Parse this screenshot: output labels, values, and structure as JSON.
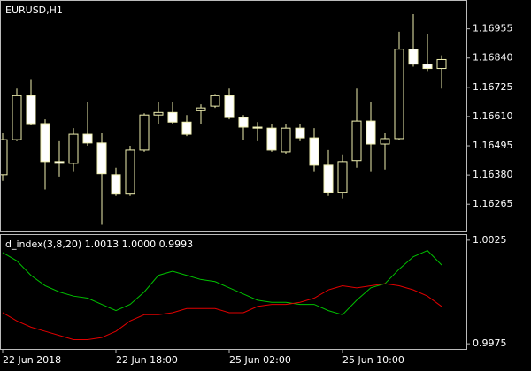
{
  "chart_data": [
    {
      "type": "candlestick",
      "title": "EURUSD,H1",
      "categories": [
        "22 Jun 2018",
        null,
        null,
        null,
        null,
        null,
        null,
        null,
        "22 Jun 18:00",
        null,
        null,
        null,
        null,
        null,
        null,
        null,
        "25 Jun 02:00",
        null,
        null,
        null,
        null,
        null,
        null,
        null,
        "25 Jun 10:00",
        null,
        null,
        null,
        null,
        null,
        null,
        null
      ],
      "open": [
        1.16381,
        1.16519,
        1.16692,
        1.16582,
        1.16433,
        1.16426,
        1.1654,
        1.16506,
        1.16381,
        1.16305,
        1.16478,
        1.16616,
        1.16626,
        1.16588,
        1.16633,
        1.16651,
        1.16692,
        1.16606,
        1.16568,
        1.16564,
        1.16471,
        1.16564,
        1.16526,
        1.16419,
        1.16312,
        1.16437,
        1.16592,
        1.16502,
        1.16523,
        1.16875,
        1.16816,
        1.16799
      ],
      "high": [
        1.16547,
        1.1672,
        1.16754,
        1.16599,
        1.16513,
        1.16564,
        1.16668,
        1.16547,
        1.16409,
        1.16495,
        1.16623,
        1.16668,
        1.16668,
        1.16616,
        1.16658,
        1.16699,
        1.1672,
        1.16616,
        1.16588,
        1.16582,
        1.16582,
        1.16582,
        1.16564,
        1.16478,
        1.16461,
        1.1672,
        1.16668,
        1.16547,
        1.16944,
        1.17013,
        1.16934,
        1.16851
      ],
      "low": [
        1.16357,
        1.16513,
        1.16575,
        1.16323,
        1.16374,
        1.16392,
        1.16495,
        1.16184,
        1.16298,
        1.16298,
        1.16471,
        1.16582,
        1.16582,
        1.16533,
        1.16582,
        1.16644,
        1.16599,
        1.16519,
        1.16513,
        1.16471,
        1.16464,
        1.16513,
        1.16392,
        1.16298,
        1.16288,
        1.16409,
        1.16392,
        1.16402,
        1.16519,
        1.16806,
        1.16789,
        1.1672
      ],
      "close": [
        1.16519,
        1.16692,
        1.16582,
        1.16433,
        1.16426,
        1.1654,
        1.16506,
        1.16385,
        1.16305,
        1.16478,
        1.16616,
        1.16626,
        1.16588,
        1.1654,
        1.16644,
        1.16692,
        1.16606,
        1.16568,
        1.16564,
        1.16478,
        1.16564,
        1.16526,
        1.16419,
        1.16312,
        1.16433,
        1.16592,
        1.16502,
        1.16523,
        1.16875,
        1.16816,
        1.16799,
        1.16834
      ],
      "up_color": "#000000",
      "down_color": "#ffffff",
      "wick_color": "#f0f0b0",
      "ylim": [
        1.16158,
        1.17065
      ],
      "yticks": [
        1.16955,
        {
          "value": 1.1684,
          "label": "1.16840"
        },
        1.16725,
        {
          "value": 1.1661,
          "label": "1.16610"
        },
        1.16495,
        {
          "value": 1.1638,
          "label": "1.16380"
        },
        1.16265
      ]
    },
    {
      "type": "line",
      "title": "d_index(3,8,20) 1.0013 1.0000 0.9993",
      "series": [
        {
          "color": "#00c000",
          "values": [
            1.0019,
            1.0015,
            1.0008,
            1.0003,
            1.0,
            0.9998,
            0.9997,
            0.9994,
            0.9991,
            0.9994,
            1.0,
            1.0008,
            1.001,
            1.0008,
            1.0006,
            1.0005,
            1.0002,
            0.9999,
            0.9996,
            0.9995,
            0.9995,
            0.9994,
            0.9994,
            0.9991,
            0.9989,
            0.9996,
            1.0002,
            1.0004,
            1.0011,
            1.0017,
            1.002,
            1.0013
          ]
        },
        {
          "color": "#e00000",
          "values": [
            0.999,
            0.9986,
            0.9983,
            0.9981,
            0.9979,
            0.9977,
            0.9977,
            0.9978,
            0.9981,
            0.9986,
            0.9989,
            0.9989,
            0.999,
            0.9992,
            0.9992,
            0.9992,
            0.999,
            0.999,
            0.9993,
            0.9994,
            0.9994,
            0.9995,
            0.9997,
            1.0001,
            1.0003,
            1.0002,
            1.0003,
            1.0004,
            1.0003,
            1.0001,
            0.9998,
            0.9993
          ]
        }
      ],
      "level": 1.0,
      "level_color": "#ffffff",
      "ylim": [
        0.99725,
        1.00275
      ],
      "yticks": [
        1.0025,
        0.9975
      ]
    }
  ]
}
